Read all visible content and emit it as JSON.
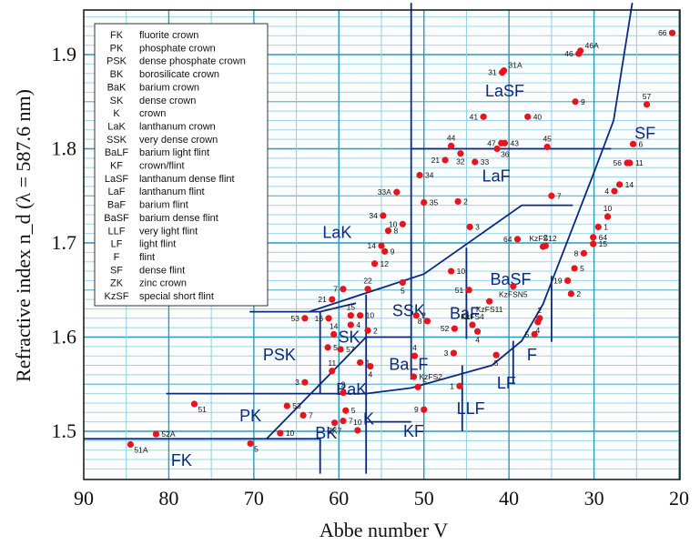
{
  "chart_data": {
    "type": "scatter",
    "title": "",
    "xlabel": "Abbe number V",
    "ylabel": "Refractive index n_d  (λ = 587.6 nm)",
    "xlim": [
      90,
      20
    ],
    "ylim": [
      1.455,
      1.955
    ],
    "x_reversed": true,
    "grid": true,
    "x_ticks": [
      90,
      80,
      70,
      60,
      50,
      40,
      30,
      20
    ],
    "y_ticks": [
      1.5,
      1.6,
      1.7,
      1.8,
      1.9
    ],
    "legend_placement": "top-left",
    "legend": [
      {
        "code": "FK",
        "desc": "fluorite crown"
      },
      {
        "code": "PK",
        "desc": "phosphate crown"
      },
      {
        "code": "PSK",
        "desc": "dense phosphate crown"
      },
      {
        "code": "BK",
        "desc": "borosilicate crown"
      },
      {
        "code": "BaK",
        "desc": "barium crown"
      },
      {
        "code": "SK",
        "desc": "dense crown"
      },
      {
        "code": "K",
        "desc": "crown"
      },
      {
        "code": "LaK",
        "desc": "lanthanum crown"
      },
      {
        "code": "SSK",
        "desc": "very dense crown"
      },
      {
        "code": "BaLF",
        "desc": "barium light flint"
      },
      {
        "code": "KF",
        "desc": "crown/flint"
      },
      {
        "code": "LaSF",
        "desc": "lanthanum dense flint"
      },
      {
        "code": "LaF",
        "desc": "lanthanum flint"
      },
      {
        "code": "BaF",
        "desc": "barium flint"
      },
      {
        "code": "BaSF",
        "desc": "barium dense flint"
      },
      {
        "code": "LLF",
        "desc": "very light flint"
      },
      {
        "code": "LF",
        "desc": "light flint"
      },
      {
        "code": "F",
        "desc": "flint"
      },
      {
        "code": "SF",
        "desc": "dense flint"
      },
      {
        "code": "ZK",
        "desc": "zinc crown"
      },
      {
        "code": "KzSF",
        "desc": "special short flint"
      }
    ],
    "region_labels": [
      {
        "text": "FK",
        "V": 78.5,
        "n": 1.468
      },
      {
        "text": "PK",
        "V": 70.4,
        "n": 1.515
      },
      {
        "text": "PSK",
        "V": 67.0,
        "n": 1.58
      },
      {
        "text": "BK",
        "V": 61.5,
        "n": 1.497
      },
      {
        "text": "BaK",
        "V": 58.5,
        "n": 1.543
      },
      {
        "text": "SK",
        "V": 58.8,
        "n": 1.599
      },
      {
        "text": "K",
        "V": 56.5,
        "n": 1.512
      },
      {
        "text": "KF",
        "V": 51.2,
        "n": 1.499
      },
      {
        "text": "LLF",
        "V": 44.5,
        "n": 1.523
      },
      {
        "text": "BaLF",
        "V": 51.8,
        "n": 1.57
      },
      {
        "text": "SSK",
        "V": 51.8,
        "n": 1.627
      },
      {
        "text": "BaF",
        "V": 45.2,
        "n": 1.624
      },
      {
        "text": "LF",
        "V": 40.3,
        "n": 1.55
      },
      {
        "text": "F",
        "V": 37.3,
        "n": 1.58
      },
      {
        "text": "BaSF",
        "V": 39.8,
        "n": 1.66
      },
      {
        "text": "LaK",
        "V": 60.2,
        "n": 1.71
      },
      {
        "text": "LaF",
        "V": 41.5,
        "n": 1.77
      },
      {
        "text": "LaSF",
        "V": 40.5,
        "n": 1.86
      },
      {
        "text": "SF",
        "V": 24.0,
        "n": 1.815
      }
    ],
    "boundaries": [
      {
        "name": "FK-top",
        "points": [
          [
            90,
            1.492
          ],
          [
            62.2,
            1.492
          ],
          [
            62.2,
            1.455
          ]
        ]
      },
      {
        "name": "PK-top",
        "points": [
          [
            80.3,
            1.54
          ],
          [
            62.2,
            1.54
          ]
        ]
      },
      {
        "name": "BK-top",
        "points": [
          [
            68.5,
            1.492
          ],
          [
            56.8,
            1.6
          ]
        ]
      },
      {
        "name": "PSK-box",
        "points": [
          [
            62.2,
            1.54
          ],
          [
            62.2,
            1.627
          ],
          [
            70.5,
            1.627
          ]
        ]
      },
      {
        "name": "PSK-SK",
        "points": [
          [
            62.2,
            1.627
          ],
          [
            58.0,
            1.636
          ]
        ]
      },
      {
        "name": "SK-LaK",
        "points": [
          [
            63.5,
            1.627
          ],
          [
            50.0,
            1.667
          ],
          [
            44.0,
            1.705
          ],
          [
            38.5,
            1.74
          ],
          [
            32.5,
            1.74
          ]
        ]
      },
      {
        "name": "SSK-left",
        "points": [
          [
            56.8,
            1.645
          ],
          [
            56.8,
            1.455
          ]
        ]
      },
      {
        "name": "SSK-SK-bottom",
        "points": [
          [
            56.8,
            1.6
          ],
          [
            51.5,
            1.6
          ]
        ]
      },
      {
        "name": "V50-line",
        "points": [
          [
            51.5,
            1.955
          ],
          [
            51.5,
            1.555
          ]
        ]
      },
      {
        "name": "K-top",
        "points": [
          [
            62.2,
            1.54
          ],
          [
            56.8,
            1.54
          ]
        ]
      },
      {
        "name": "BaLF-bottom",
        "points": [
          [
            56.8,
            1.54
          ],
          [
            51.5,
            1.546
          ],
          [
            42.0,
            1.57
          ],
          [
            38.5,
            1.596
          ],
          [
            36.0,
            1.635
          ],
          [
            33.0,
            1.705
          ],
          [
            30.0,
            1.775
          ],
          [
            27.7,
            1.83
          ],
          [
            25.5,
            1.955
          ]
        ]
      },
      {
        "name": "KF-bottom",
        "points": [
          [
            56.8,
            1.51
          ],
          [
            51.5,
            1.51
          ]
        ]
      },
      {
        "name": "LLF-right",
        "points": [
          [
            45.5,
            1.57
          ],
          [
            45.5,
            1.5
          ]
        ]
      },
      {
        "name": "LF-right",
        "points": [
          [
            39.5,
            1.596
          ],
          [
            39.5,
            1.55
          ]
        ]
      },
      {
        "name": "BaSF-left",
        "points": [
          [
            45.0,
            1.695
          ],
          [
            45.0,
            1.598
          ]
        ]
      },
      {
        "name": "F-right",
        "points": [
          [
            35.0,
            1.665
          ],
          [
            35.0,
            1.595
          ]
        ]
      },
      {
        "name": "LaSF-bottom",
        "points": [
          [
            51.5,
            1.8
          ],
          [
            28.0,
            1.8
          ]
        ]
      }
    ],
    "points": [
      {
        "label": "51A",
        "V": 84.5,
        "n": 1.486,
        "pos": "br"
      },
      {
        "label": "52A",
        "V": 81.5,
        "n": 1.497,
        "pos": "r"
      },
      {
        "label": "51",
        "V": 77.0,
        "n": 1.529,
        "pos": "br"
      },
      {
        "label": "5",
        "V": 70.4,
        "n": 1.487,
        "pos": "br"
      },
      {
        "label": "53",
        "V": 66.1,
        "n": 1.527,
        "pos": "r"
      },
      {
        "label": "7",
        "V": 64.2,
        "n": 1.517,
        "pos": "r"
      },
      {
        "label": "10",
        "V": 66.9,
        "n": 1.498,
        "pos": "r"
      },
      {
        "label": "3",
        "V": 64.0,
        "n": 1.552,
        "pos": "l"
      },
      {
        "label": "53",
        "V": 64.0,
        "n": 1.62,
        "pos": "l"
      },
      {
        "label": "ZK7",
        "V": 60.5,
        "n": 1.509,
        "pos": "b"
      },
      {
        "label": "7",
        "V": 59.5,
        "n": 1.511,
        "pos": "r"
      },
      {
        "label": "5",
        "V": 59.2,
        "n": 1.522,
        "pos": "r"
      },
      {
        "label": "2",
        "V": 59.5,
        "n": 1.541,
        "pos": "t"
      },
      {
        "label": "10",
        "V": 57.8,
        "n": 1.501,
        "pos": "t"
      },
      {
        "label": "11",
        "V": 60.8,
        "n": 1.564,
        "pos": "t"
      },
      {
        "label": "1",
        "V": 57.5,
        "n": 1.573,
        "pos": "r"
      },
      {
        "label": "4",
        "V": 56.3,
        "n": 1.569,
        "pos": "b"
      },
      {
        "label": "5",
        "V": 61.3,
        "n": 1.589,
        "pos": "r"
      },
      {
        "label": "57",
        "V": 59.8,
        "n": 1.587,
        "pos": "r"
      },
      {
        "label": "14",
        "V": 60.6,
        "n": 1.603,
        "pos": "t"
      },
      {
        "label": "4",
        "V": 58.6,
        "n": 1.613,
        "pos": "r"
      },
      {
        "label": "2",
        "V": 56.6,
        "n": 1.607,
        "pos": "r"
      },
      {
        "label": "16",
        "V": 61.2,
        "n": 1.62,
        "pos": "l"
      },
      {
        "label": "15",
        "V": 58.6,
        "n": 1.623,
        "pos": "t"
      },
      {
        "label": "10",
        "V": 57.5,
        "n": 1.623,
        "pos": "r"
      },
      {
        "label": "21",
        "V": 60.8,
        "n": 1.64,
        "pos": "l"
      },
      {
        "label": "7",
        "V": 59.5,
        "n": 1.651,
        "pos": "l"
      },
      {
        "label": "22",
        "V": 56.6,
        "n": 1.651,
        "pos": "t"
      },
      {
        "label": "12",
        "V": 55.8,
        "n": 1.678,
        "pos": "r"
      },
      {
        "label": "14",
        "V": 55.0,
        "n": 1.697,
        "pos": "l"
      },
      {
        "label": "9",
        "V": 54.6,
        "n": 1.691,
        "pos": "r"
      },
      {
        "label": "8",
        "V": 54.2,
        "n": 1.713,
        "pos": "r"
      },
      {
        "label": "34",
        "V": 54.8,
        "n": 1.729,
        "pos": "l"
      },
      {
        "label": "10",
        "V": 52.5,
        "n": 1.72,
        "pos": "l"
      },
      {
        "label": "33A",
        "V": 53.2,
        "n": 1.754,
        "pos": "l"
      },
      {
        "label": "5",
        "V": 52.5,
        "n": 1.658,
        "pos": "b"
      },
      {
        "label": "2",
        "V": 50.9,
        "n": 1.623,
        "pos": "r"
      },
      {
        "label": "8",
        "V": 49.6,
        "n": 1.617,
        "pos": "l"
      },
      {
        "label": "4",
        "V": 51.1,
        "n": 1.58,
        "pos": "t"
      },
      {
        "label": "KzFS2",
        "V": 51.2,
        "n": 1.558,
        "pos": "r"
      },
      {
        "label": "5",
        "V": 50.7,
        "n": 1.547,
        "pos": "tr"
      },
      {
        "label": "9",
        "V": 50.0,
        "n": 1.523,
        "pos": "l"
      },
      {
        "label": "1",
        "V": 45.8,
        "n": 1.548,
        "pos": "l"
      },
      {
        "label": "3",
        "V": 46.5,
        "n": 1.583,
        "pos": "l"
      },
      {
        "label": "52",
        "V": 46.4,
        "n": 1.609,
        "pos": "l"
      },
      {
        "label": "KzFS4",
        "V": 44.3,
        "n": 1.613,
        "pos": "t"
      },
      {
        "label": "4",
        "V": 43.7,
        "n": 1.606,
        "pos": "b"
      },
      {
        "label": "51",
        "V": 44.7,
        "n": 1.65,
        "pos": "l"
      },
      {
        "label": "10",
        "V": 46.8,
        "n": 1.67,
        "pos": "r"
      },
      {
        "label": "KzFS11",
        "V": 42.3,
        "n": 1.638,
        "pos": "b"
      },
      {
        "label": "KzFSN5",
        "V": 39.5,
        "n": 1.654,
        "pos": "b"
      },
      {
        "label": "5",
        "V": 41.5,
        "n": 1.581,
        "pos": "b"
      },
      {
        "label": "5",
        "V": 37.0,
        "n": 1.603,
        "pos": "l"
      },
      {
        "label": "2",
        "V": 36.4,
        "n": 1.62,
        "pos": "t"
      },
      {
        "label": "4",
        "V": 36.6,
        "n": 1.616,
        "pos": "b"
      },
      {
        "label": "2",
        "V": 35.7,
        "n": 1.697,
        "pos": "t"
      },
      {
        "label": "2",
        "V": 32.7,
        "n": 1.646,
        "pos": "r"
      },
      {
        "label": "19",
        "V": 33.1,
        "n": 1.66,
        "pos": "l"
      },
      {
        "label": "5",
        "V": 32.3,
        "n": 1.673,
        "pos": "r"
      },
      {
        "label": "8",
        "V": 31.2,
        "n": 1.689,
        "pos": "l"
      },
      {
        "label": "15",
        "V": 30.1,
        "n": 1.699,
        "pos": "r"
      },
      {
        "label": "64",
        "V": 30.1,
        "n": 1.706,
        "pos": "r"
      },
      {
        "label": "1",
        "V": 29.5,
        "n": 1.717,
        "pos": "r"
      },
      {
        "label": "10",
        "V": 28.4,
        "n": 1.728,
        "pos": "t"
      },
      {
        "label": "64",
        "V": 39.0,
        "n": 1.704,
        "pos": "l"
      },
      {
        "label": "KzFS12",
        "V": 36.0,
        "n": 1.696,
        "pos": "t"
      },
      {
        "label": "3",
        "V": 44.6,
        "n": 1.717,
        "pos": "r"
      },
      {
        "label": "35",
        "V": 50.0,
        "n": 1.743,
        "pos": "r"
      },
      {
        "label": "2",
        "V": 46.0,
        "n": 1.744,
        "pos": "r"
      },
      {
        "label": "7",
        "V": 35.0,
        "n": 1.75,
        "pos": "r"
      },
      {
        "label": "34",
        "V": 50.5,
        "n": 1.772,
        "pos": "r"
      },
      {
        "label": "21",
        "V": 47.5,
        "n": 1.788,
        "pos": "l"
      },
      {
        "label": "32",
        "V": 45.7,
        "n": 1.795,
        "pos": "b"
      },
      {
        "label": "33",
        "V": 44.0,
        "n": 1.786,
        "pos": "r"
      },
      {
        "label": "36",
        "V": 41.4,
        "n": 1.8,
        "pos": "br"
      },
      {
        "label": "44",
        "V": 46.8,
        "n": 1.803,
        "pos": "t"
      },
      {
        "label": "47",
        "V": 40.9,
        "n": 1.806,
        "pos": "l"
      },
      {
        "label": "43",
        "V": 40.5,
        "n": 1.806,
        "pos": "r"
      },
      {
        "label": "45",
        "V": 35.5,
        "n": 1.802,
        "pos": "t"
      },
      {
        "label": "41",
        "V": 43.0,
        "n": 1.834,
        "pos": "l"
      },
      {
        "label": "40",
        "V": 37.8,
        "n": 1.834,
        "pos": "r"
      },
      {
        "label": "9",
        "V": 32.2,
        "n": 1.85,
        "pos": "r"
      },
      {
        "label": "31",
        "V": 40.8,
        "n": 1.881,
        "pos": "l"
      },
      {
        "label": "31A",
        "V": 40.6,
        "n": 1.883,
        "pos": "tr"
      },
      {
        "label": "46",
        "V": 31.8,
        "n": 1.901,
        "pos": "l"
      },
      {
        "label": "46A",
        "V": 31.6,
        "n": 1.904,
        "pos": "tr"
      },
      {
        "label": "66",
        "V": 20.8,
        "n": 1.923,
        "pos": "l"
      },
      {
        "label": "57",
        "V": 23.8,
        "n": 1.847,
        "pos": "t"
      },
      {
        "label": "6",
        "V": 25.4,
        "n": 1.805,
        "pos": "r"
      },
      {
        "label": "56",
        "V": 26.1,
        "n": 1.785,
        "pos": "l"
      },
      {
        "label": "11",
        "V": 25.8,
        "n": 1.785,
        "pos": "r"
      },
      {
        "label": "14",
        "V": 27.0,
        "n": 1.762,
        "pos": "r"
      },
      {
        "label": "4",
        "V": 27.6,
        "n": 1.755,
        "pos": "l"
      }
    ]
  }
}
